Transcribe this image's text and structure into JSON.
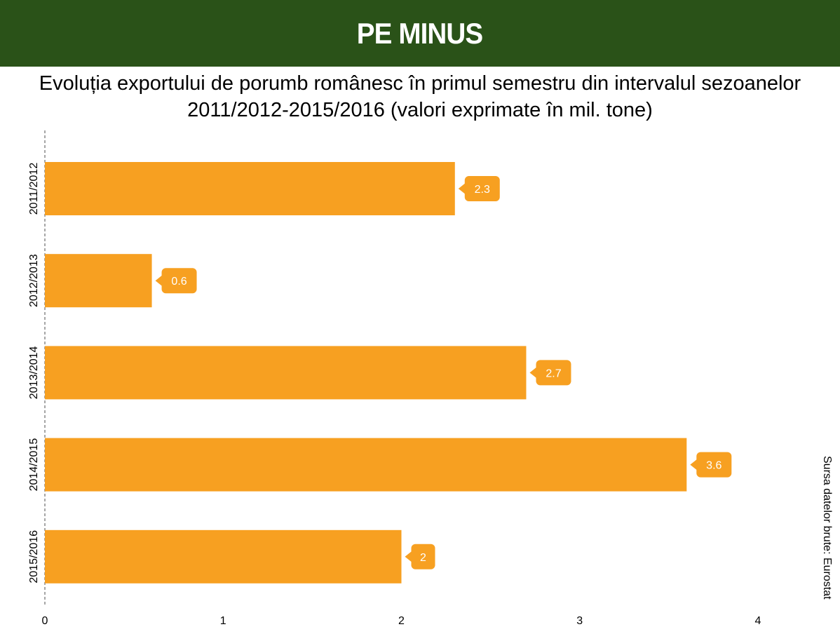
{
  "header": {
    "title": "PE MINUS",
    "background": "#2a5218"
  },
  "source_note": "Sursa datelor brute: Eurostat",
  "chart_data": {
    "type": "bar",
    "orientation": "horizontal",
    "title": "Evoluția exportului de porumb românesc în primul semestru din intervalul sezoanelor 2011/2012-2015/2016 (valori exprimate în mil. tone)",
    "categories": [
      "2011/2012",
      "2012/2013",
      "2013/2014",
      "2014/2015",
      "2015/2016"
    ],
    "values": [
      2.3,
      0.6,
      2.7,
      3.6,
      2
    ],
    "data_labels": [
      "2.3",
      "0.6",
      "2.7",
      "3.6",
      "2"
    ],
    "xlim": [
      0,
      4
    ],
    "x_ticks": [
      0,
      1,
      2,
      3,
      4
    ],
    "x_tick_labels": [
      "0",
      "1",
      "2",
      "3",
      "4"
    ],
    "bar_color": "#f7a021",
    "grid": false,
    "legend": "none"
  }
}
